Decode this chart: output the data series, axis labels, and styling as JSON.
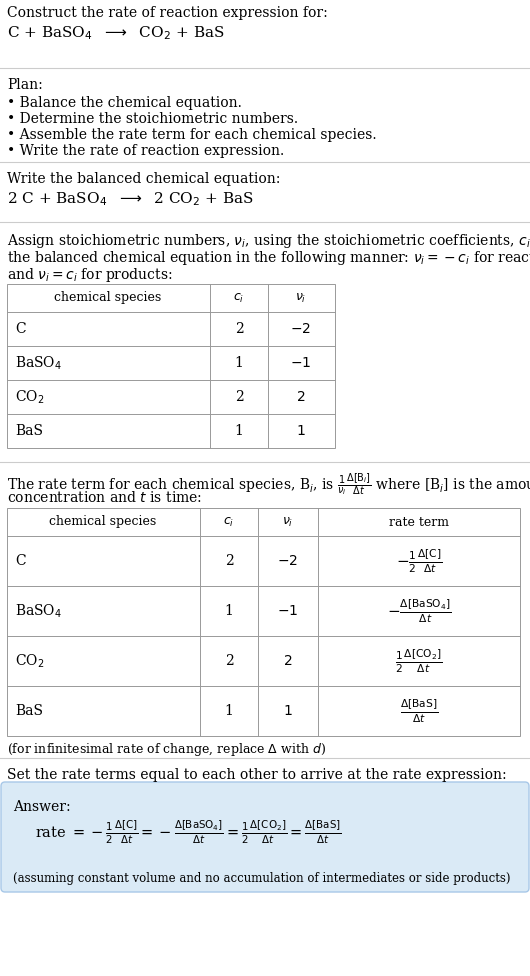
{
  "bg_color": "#ffffff",
  "text_color": "#000000",
  "answer_box_color": "#daeaf6",
  "answer_box_edge": "#a8c8e8",
  "title_line1": "Construct the rate of reaction expression for:",
  "title_line2": "C + BaSO$_4$  $\\longrightarrow$  CO$_2$ + BaS",
  "plan_header": "Plan:",
  "plan_items": [
    "• Balance the chemical equation.",
    "• Determine the stoichiometric numbers.",
    "• Assemble the rate term for each chemical species.",
    "• Write the rate of reaction expression."
  ],
  "balanced_header": "Write the balanced chemical equation:",
  "balanced_eq": "2 C + BaSO$_4$  $\\longrightarrow$  2 CO$_2$ + BaS",
  "stoich_intro1": "Assign stoichiometric numbers, $\\nu_i$, using the stoichiometric coefficients, $c_i$, from",
  "stoich_intro2": "the balanced chemical equation in the following manner: $\\nu_i = -c_i$ for reactants",
  "stoich_intro3": "and $\\nu_i = c_i$ for products:",
  "table1_col_labels": [
    "chemical species",
    "$c_i$",
    "$\\nu_i$"
  ],
  "table1_rows": [
    [
      "C",
      "2",
      "$-2$"
    ],
    [
      "BaSO$_4$",
      "1",
      "$-1$"
    ],
    [
      "CO$_2$",
      "2",
      "$2$"
    ],
    [
      "BaS",
      "1",
      "$1$"
    ]
  ],
  "rate_intro1": "The rate term for each chemical species, B$_i$, is $\\frac{1}{\\nu_i}\\frac{\\Delta[\\mathrm{B}_i]}{\\Delta t}$ where [B$_i$] is the amount",
  "rate_intro2": "concentration and $t$ is time:",
  "table2_col_labels": [
    "chemical species",
    "$c_i$",
    "$\\nu_i$",
    "rate term"
  ],
  "table2_rows": [
    [
      "C",
      "2",
      "$-2$",
      "$-\\frac{1}{2}\\frac{\\Delta[\\mathrm{C}]}{\\Delta t}$"
    ],
    [
      "BaSO$_4$",
      "1",
      "$-1$",
      "$-\\frac{\\Delta[\\mathrm{BaSO_4}]}{\\Delta t}$"
    ],
    [
      "CO$_2$",
      "2",
      "$2$",
      "$\\frac{1}{2}\\frac{\\Delta[\\mathrm{CO_2}]}{\\Delta t}$"
    ],
    [
      "BaS",
      "1",
      "$1$",
      "$\\frac{\\Delta[\\mathrm{BaS}]}{\\Delta t}$"
    ]
  ],
  "infinitesimal_note": "(for infinitesimal rate of change, replace $\\Delta$ with $d$)",
  "set_equal_header": "Set the rate terms equal to each other to arrive at the rate expression:",
  "answer_label": "Answer:",
  "rate_expr_parts": [
    "rate $= -\\frac{1}{2}\\frac{\\Delta[\\mathrm{C}]}{\\Delta t}$",
    "$= -\\frac{\\Delta[\\mathrm{BaSO_4}]}{\\Delta t}$",
    "$= \\frac{1}{2}\\frac{\\Delta[\\mathrm{CO_2}]}{\\Delta t}$",
    "$= \\frac{\\Delta[\\mathrm{BaS}]}{\\Delta t}$"
  ],
  "assuming_note": "(assuming constant volume and no accumulation of intermediates or side products)"
}
